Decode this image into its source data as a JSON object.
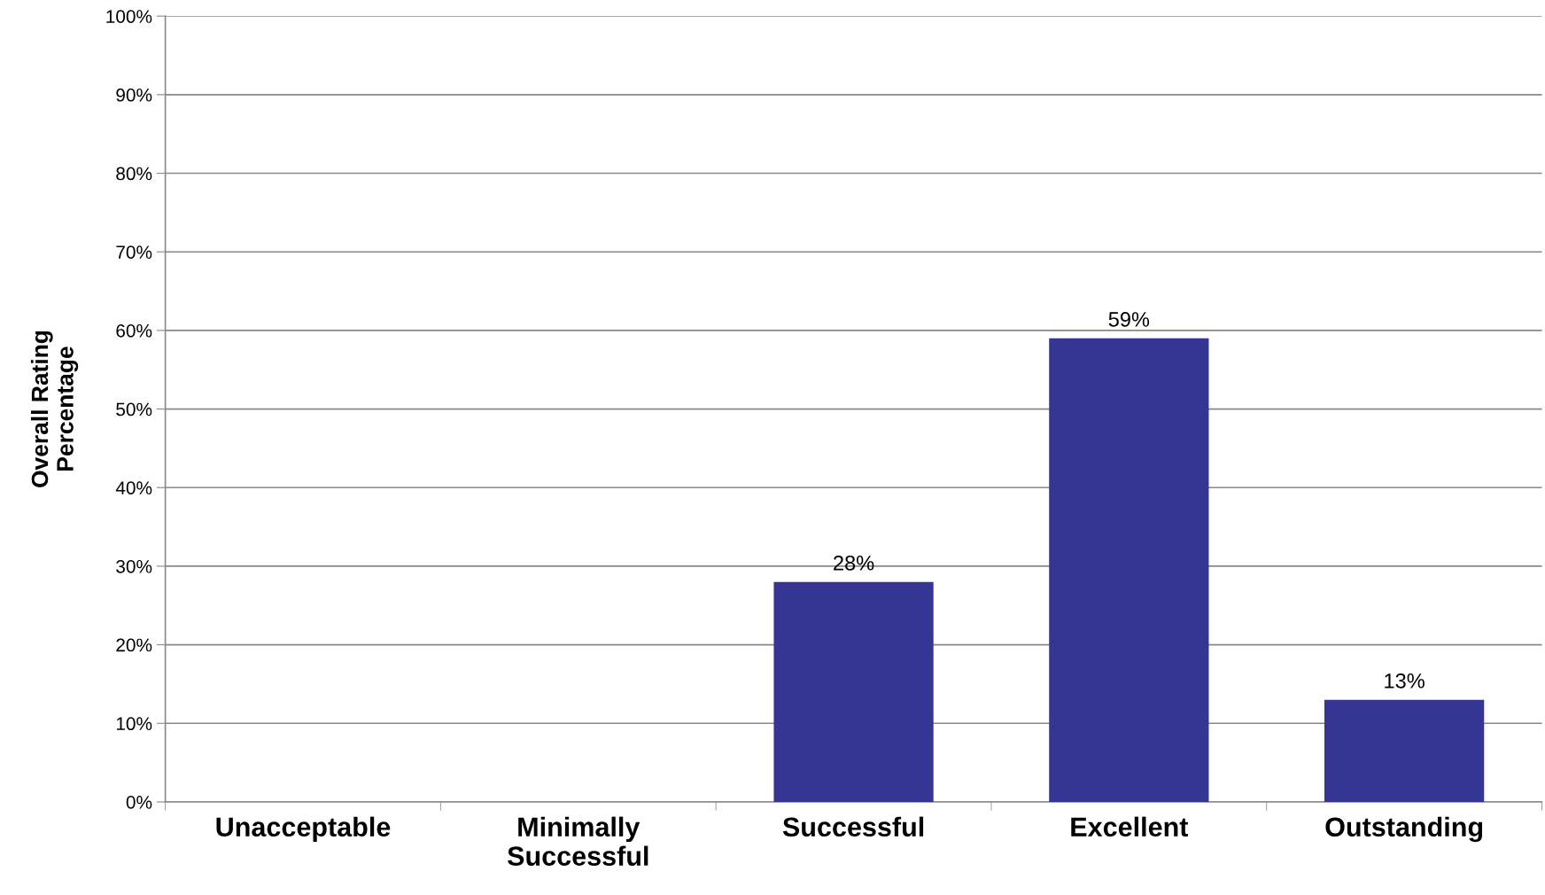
{
  "chart_data": {
    "type": "bar",
    "ylabel": "Overall Rating\nPercentage",
    "categories": [
      "Unacceptable",
      "Minimally\nSuccessful",
      "Successful",
      "Excellent",
      "Outstanding"
    ],
    "values": [
      0,
      0,
      28,
      59,
      13
    ],
    "value_labels": [
      null,
      null,
      "28%",
      "59%",
      "13%"
    ],
    "color": "#353594",
    "ylim": [
      0,
      100
    ],
    "yticks": [
      {
        "value": 0,
        "label": "0%"
      },
      {
        "value": 10,
        "label": "10%"
      },
      {
        "value": 20,
        "label": "20%"
      },
      {
        "value": 30,
        "label": "30%"
      },
      {
        "value": 40,
        "label": "40%"
      },
      {
        "value": 50,
        "label": "50%"
      },
      {
        "value": 60,
        "label": "60%"
      },
      {
        "value": 70,
        "label": "70%"
      },
      {
        "value": 80,
        "label": "80%"
      },
      {
        "value": 90,
        "label": "90%"
      },
      {
        "value": 100,
        "label": "100%"
      }
    ],
    "grid": "y",
    "legend": false
  }
}
